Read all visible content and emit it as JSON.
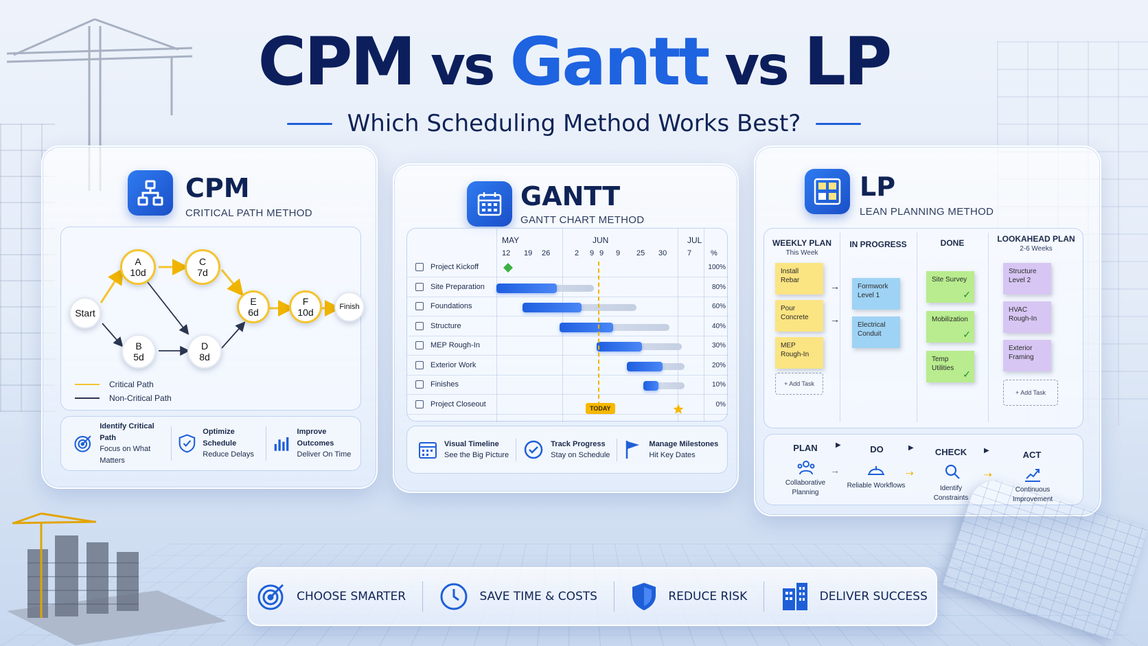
{
  "title": {
    "part1": "CPM",
    "vs1": " vs ",
    "part2": "Gantt",
    "vs2": " vs ",
    "part3": "LP"
  },
  "subtitle": "Which Scheduling Method Works Best?",
  "cpm": {
    "name": "CPM",
    "full_name": "CRITICAL PATH METHOD",
    "nodes": {
      "start": "Start",
      "a": {
        "label": "A",
        "duration": "10d"
      },
      "b": {
        "label": "B",
        "duration": "5d"
      },
      "c": {
        "label": "C",
        "duration": "7d"
      },
      "d": {
        "label": "D",
        "duration": "8d"
      },
      "e": {
        "label": "E",
        "duration": "6d"
      },
      "f": {
        "label": "F",
        "duration": "10d"
      },
      "finish": "Finish"
    },
    "legend": {
      "critical": "Critical Path",
      "non_critical": "Non-Critical Path"
    },
    "features": [
      {
        "title": "Identify Critical Path",
        "sub": "Focus on What Matters"
      },
      {
        "title": "Optimize Schedule",
        "sub": "Reduce Delays"
      },
      {
        "title": "Improve Outcomes",
        "sub": "Deliver On Time"
      }
    ]
  },
  "gantt": {
    "name": "GANTT",
    "full_name": "GANTT CHART METHOD",
    "months": [
      "MAY",
      "JUN",
      "JUL"
    ],
    "days": [
      "12",
      "19",
      "26",
      "2",
      "9",
      "9",
      "9",
      "25",
      "30",
      "7"
    ],
    "pct_header": "%",
    "tasks": [
      {
        "name": "Project Kickoff",
        "pct": "100%"
      },
      {
        "name": "Site Preparation",
        "pct": "80%"
      },
      {
        "name": "Foundations",
        "pct": "60%"
      },
      {
        "name": "Structure",
        "pct": "40%"
      },
      {
        "name": "MEP Rough-In",
        "pct": "30%"
      },
      {
        "name": "Exterior Work",
        "pct": "20%"
      },
      {
        "name": "Finishes",
        "pct": "10%"
      },
      {
        "name": "Project Closeout",
        "pct": "0%"
      }
    ],
    "today": "TODAY",
    "features": [
      {
        "title": "Visual Timeline",
        "sub": "See the Big Picture"
      },
      {
        "title": "Track Progress",
        "sub": "Stay on Schedule"
      },
      {
        "title": "Manage Milestones",
        "sub": "Hit Key Dates"
      }
    ]
  },
  "lp": {
    "name": "LP",
    "full_name": "LEAN PLANNING METHOD",
    "columns": [
      {
        "title": "WEEKLY PLAN",
        "sub": "This Week"
      },
      {
        "title": "IN PROGRESS",
        "sub": ""
      },
      {
        "title": "DONE",
        "sub": ""
      },
      {
        "title": "LOOKAHEAD PLAN",
        "sub": "2-6 Weeks"
      }
    ],
    "weekly": [
      "Install Rebar",
      "Pour Concrete",
      "MEP Rough-In"
    ],
    "in_progress": [
      "Formwork Level 1",
      "Electrical Conduit"
    ],
    "done": [
      "Site Survey",
      "Mobilization",
      "Temp Utilities"
    ],
    "lookahead": [
      "Structure Level 2",
      "HVAC Rough-In",
      "Exterior Framing"
    ],
    "add_task": "+ Add Task",
    "add_task_2": "+ Add Task",
    "pdca": [
      {
        "step": "PLAN",
        "sub": "Collaborative Planning"
      },
      {
        "step": "DO",
        "sub": "Reliable Workflows"
      },
      {
        "step": "CHECK",
        "sub": "Identify Constraints"
      },
      {
        "step": "ACT",
        "sub": "Continuous Improvement"
      }
    ]
  },
  "bottom": [
    "CHOOSE SMARTER",
    "SAVE TIME & COSTS",
    "REDUCE RISK",
    "DELIVER SUCCESS"
  ],
  "colors": {
    "navy": "#0c1f5c",
    "blue": "#1e63e0",
    "critical": "#f4c430"
  }
}
